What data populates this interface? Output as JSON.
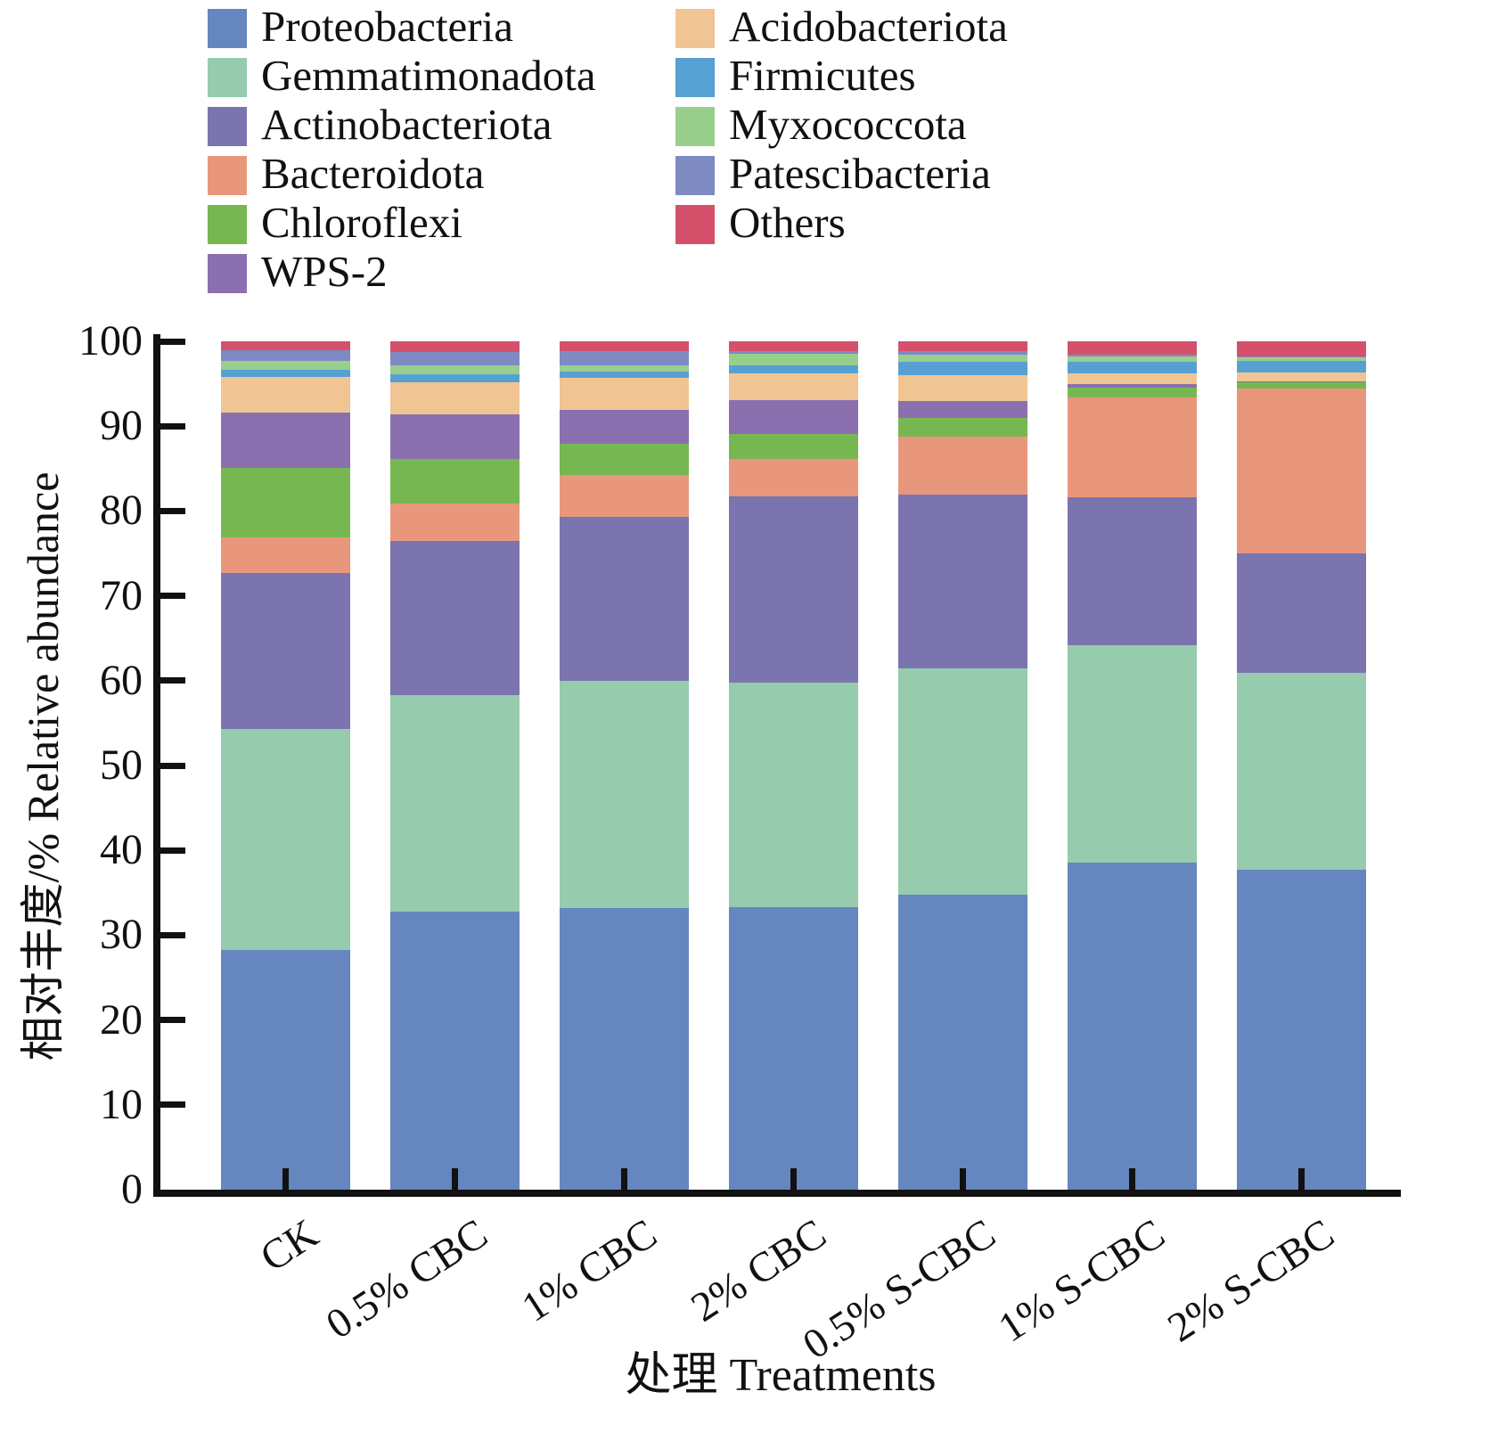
{
  "chart_data": {
    "type": "bar",
    "stacked": true,
    "orientation": "vertical",
    "xlabel": "处理 Treatments",
    "ylabel": "相对丰度/%  Relative abundance",
    "ylim": [
      0,
      100
    ],
    "yticks": [
      0,
      10,
      20,
      30,
      40,
      50,
      60,
      70,
      80,
      90,
      100
    ],
    "grid": false,
    "legend_position": "top",
    "legend_columns": [
      [
        "Proteobacteria",
        "Gemmatimonadota",
        "Actinobacteriota",
        "Bacteroidota",
        "Chloroflexi",
        "WPS-2"
      ],
      [
        "Acidobacteriota",
        "Firmicutes",
        "Myxococcota",
        "Patescibacteria",
        "Others"
      ]
    ],
    "categories": [
      "CK",
      "0.5% CBC",
      "1% CBC",
      "2% CBC",
      "0.5% S-CBC",
      "1% S-CBC",
      "2% S-CBC"
    ],
    "series": [
      {
        "name": "Proteobacteria",
        "color": "#6586BE",
        "values": [
          28.3,
          32.8,
          33.2,
          33.3,
          34.8,
          38.6,
          37.7
        ]
      },
      {
        "name": "Gemmatimonadota",
        "color": "#96CBAE",
        "values": [
          26.0,
          25.5,
          26.8,
          26.5,
          26.6,
          25.6,
          23.2
        ]
      },
      {
        "name": "Actinobacteriota",
        "color": "#7B74AE",
        "values": [
          18.4,
          18.2,
          19.3,
          21.9,
          20.5,
          17.4,
          14.1
        ]
      },
      {
        "name": "Bacteroidota",
        "color": "#E9977C",
        "values": [
          4.2,
          4.4,
          4.9,
          4.4,
          6.9,
          11.8,
          19.4
        ]
      },
      {
        "name": "Chloroflexi",
        "color": "#77B751",
        "values": [
          8.2,
          5.2,
          3.7,
          3.0,
          2.2,
          1.1,
          0.8
        ]
      },
      {
        "name": "WPS-2",
        "color": "#8A70AF",
        "values": [
          6.5,
          5.3,
          4.0,
          4.0,
          2.0,
          0.5,
          0.1
        ]
      },
      {
        "name": "Acidobacteriota",
        "color": "#F1C493",
        "values": [
          4.2,
          3.8,
          3.8,
          3.1,
          3.0,
          1.2,
          1.0
        ]
      },
      {
        "name": "Firmicutes",
        "color": "#57A0D3",
        "values": [
          0.8,
          0.9,
          0.7,
          1.0,
          1.6,
          1.4,
          1.4
        ]
      },
      {
        "name": "Myxococcota",
        "color": "#98CF8D",
        "values": [
          1.1,
          1.1,
          0.8,
          1.3,
          0.8,
          0.6,
          0.4
        ]
      },
      {
        "name": "Patescibacteria",
        "color": "#7F8AC3",
        "values": [
          1.2,
          1.5,
          1.6,
          0.3,
          0.4,
          0.2,
          0.1
        ]
      },
      {
        "name": "Others",
        "color": "#D5516B",
        "values": [
          1.1,
          1.3,
          1.2,
          1.2,
          1.2,
          1.6,
          1.8
        ]
      }
    ]
  }
}
